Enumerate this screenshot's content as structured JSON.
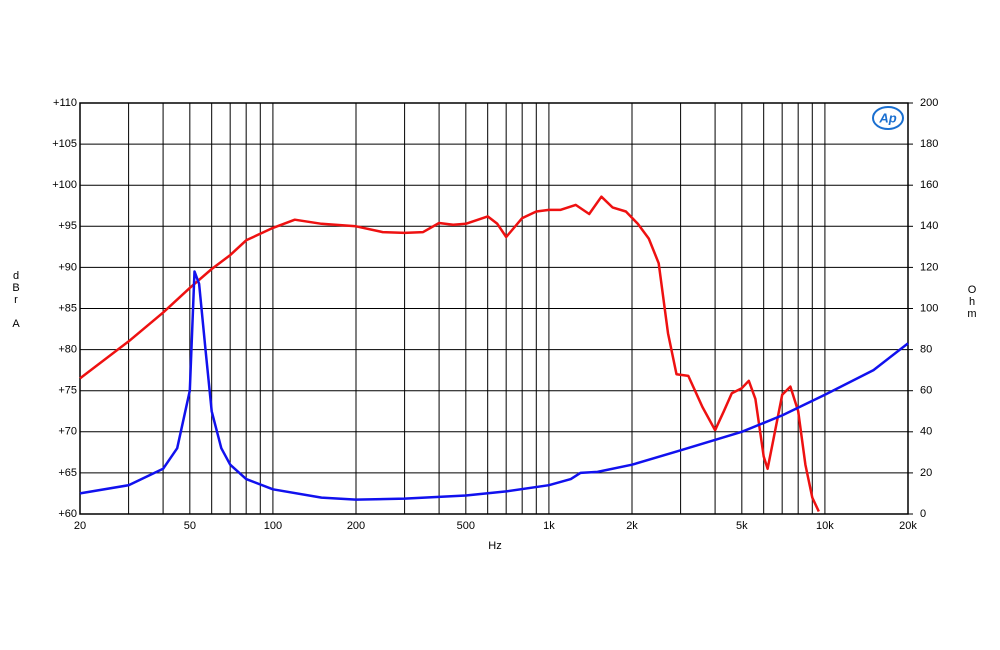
{
  "chart_data": {
    "type": "line",
    "x_label": "Hz",
    "y_label": "dBr A",
    "y2_label": "Ohm",
    "logo": "Ap",
    "xscale": "log",
    "xlim": [
      20,
      20000
    ],
    "xticks": [
      20,
      50,
      100,
      200,
      500,
      {
        "value": 1000,
        "label": "1k"
      },
      {
        "value": 2000,
        "label": "2k"
      },
      {
        "value": 5000,
        "label": "5k"
      },
      {
        "value": 10000,
        "label": "10k"
      },
      {
        "value": 20000,
        "label": "20k"
      }
    ],
    "xgrid_minor": [
      30,
      40,
      60,
      70,
      80,
      90,
      300,
      400,
      600,
      700,
      800,
      900,
      3000,
      4000,
      6000,
      7000,
      8000,
      9000
    ],
    "ylim": [
      60,
      110
    ],
    "yticks": [
      {
        "value": 60,
        "label": "+60"
      },
      {
        "value": 65,
        "label": "+65"
      },
      {
        "value": 70,
        "label": "+70"
      },
      {
        "value": 75,
        "label": "+75"
      },
      {
        "value": 80,
        "label": "+80"
      },
      {
        "value": 85,
        "label": "+85"
      },
      {
        "value": 90,
        "label": "+90"
      },
      {
        "value": 95,
        "label": "+95"
      },
      {
        "value": 100,
        "label": "+100"
      },
      {
        "value": 105,
        "label": "+105"
      },
      {
        "value": 110,
        "label": "+110"
      }
    ],
    "y2lim": [
      0,
      200
    ],
    "y2ticks": [
      0,
      20,
      40,
      60,
      80,
      100,
      120,
      140,
      160,
      180,
      200
    ],
    "grid": true,
    "series": [
      {
        "color": "#ee1111",
        "x": [
          20,
          30,
          40,
          50,
          60,
          70,
          80,
          100,
          120,
          150,
          200,
          250,
          300,
          350,
          400,
          450,
          500,
          600,
          650,
          700,
          800,
          900,
          1000,
          1100,
          1250,
          1400,
          1550,
          1700,
          1900,
          2100,
          2300,
          2500,
          2700,
          2900,
          3200,
          3600,
          4000,
          4300,
          4600,
          5000,
          5300,
          5600,
          6000,
          6200,
          6500,
          7000,
          7500,
          8000,
          8500,
          9000,
          9500
        ],
        "values": [
          76.5,
          81,
          84.5,
          87.5,
          89.8,
          91.5,
          93.3,
          94.8,
          95.8,
          95.3,
          95,
          94.3,
          94.2,
          94.3,
          95.4,
          95.2,
          95.3,
          96.2,
          95.3,
          93.7,
          96,
          96.8,
          97,
          97,
          97.6,
          96.5,
          98.6,
          97.3,
          96.8,
          95.3,
          93.5,
          90.5,
          82,
          77,
          76.8,
          73,
          70.2,
          72.5,
          74.7,
          75.3,
          76.2,
          74,
          67,
          65.5,
          69,
          74.5,
          75.5,
          72.5,
          66,
          62,
          60.3
        ]
      },
      {
        "color": "#1111ee",
        "axis": "y2",
        "x": [
          20,
          30,
          40,
          45,
          50,
          52,
          54,
          57,
          60,
          65,
          70,
          80,
          100,
          150,
          200,
          300,
          500,
          700,
          1000,
          1200,
          1300,
          1500,
          2000,
          3000,
          5000,
          7000,
          10000,
          15000,
          20000
        ],
        "values": [
          10,
          14,
          22,
          32,
          60,
          118,
          112,
          80,
          50,
          32,
          24,
          17,
          12,
          8,
          7,
          7.5,
          9,
          11,
          14,
          17,
          20,
          20.5,
          24,
          31,
          40,
          48,
          58,
          70,
          83
        ]
      }
    ]
  }
}
